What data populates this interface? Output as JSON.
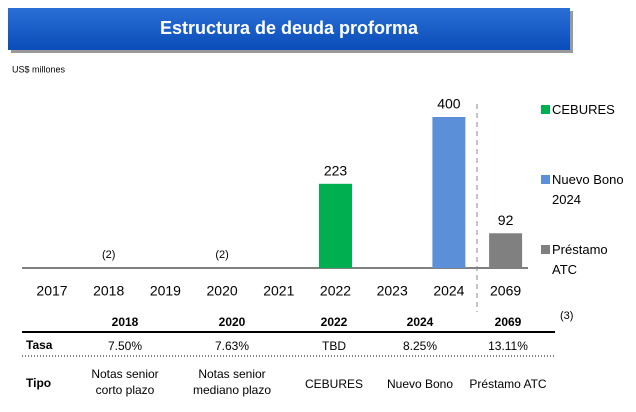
{
  "chart_data": {
    "type": "bar",
    "title": "Estructura de deuda proforma",
    "subtitle": "US$ millones",
    "categories": [
      "2017",
      "2018",
      "2019",
      "2020",
      "2021",
      "2022",
      "2023",
      "2024",
      "2069"
    ],
    "series": [
      {
        "name": "CEBURES",
        "color": "#00b050",
        "values": [
          null,
          null,
          null,
          null,
          null,
          223,
          null,
          null,
          null
        ]
      },
      {
        "name": "Nuevo Bono 2024",
        "color": "#5b8fd8",
        "values": [
          null,
          null,
          null,
          null,
          null,
          null,
          null,
          400,
          null
        ]
      },
      {
        "name": "Préstamo ATC",
        "color": "#808080",
        "values": [
          null,
          null,
          null,
          null,
          null,
          null,
          null,
          null,
          92
        ]
      }
    ],
    "annotations": [
      {
        "category": "2018",
        "text": "(2)"
      },
      {
        "category": "2020",
        "text": "(2)"
      }
    ],
    "legend": "right"
  },
  "table": {
    "header": [
      "2018",
      "2020",
      "2022",
      "2024",
      "2069"
    ],
    "footnote": "(3)",
    "rows": [
      {
        "label": "Tasa",
        "cells": [
          [
            "7.50%"
          ],
          [
            "7.63%"
          ],
          [
            "TBD"
          ],
          [
            "8.25%"
          ],
          [
            "13.11%"
          ]
        ]
      },
      {
        "label": "Tipo",
        "cells": [
          [
            "Notas senior",
            "corto plazo"
          ],
          [
            "Notas senior",
            "mediano plazo"
          ],
          [
            "CEBURES"
          ],
          [
            "Nuevo  Bono"
          ],
          [
            "Préstamo ATC"
          ]
        ]
      }
    ]
  }
}
